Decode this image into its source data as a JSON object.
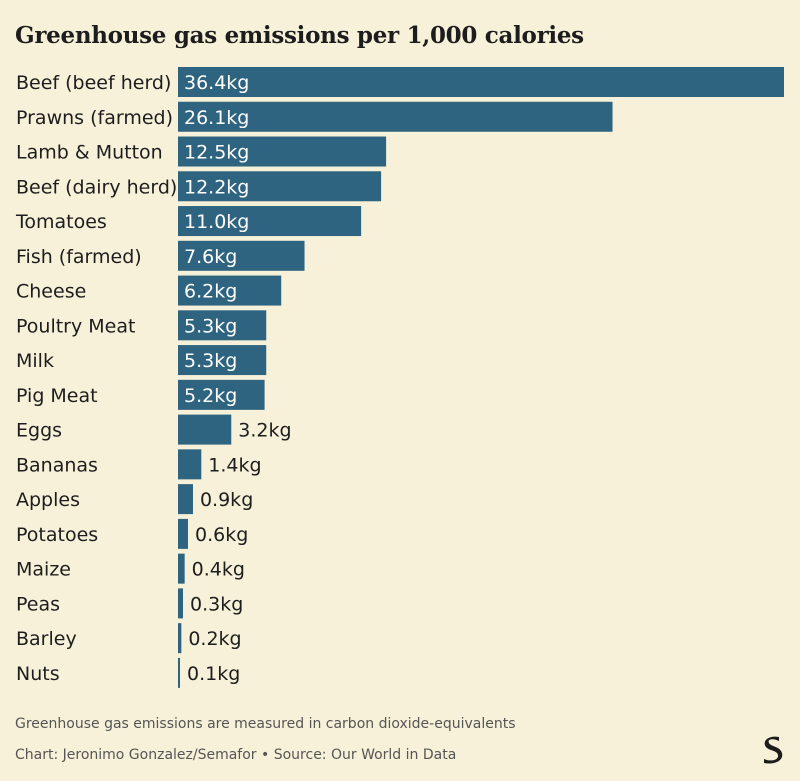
{
  "chart_data": {
    "type": "bar",
    "orientation": "horizontal",
    "title": "Greenhouse gas emissions per 1,000 calories",
    "categories": [
      "Beef (beef herd)",
      "Prawns (farmed)",
      "Lamb & Mutton",
      "Beef (dairy herd)",
      "Tomatoes",
      "Fish (farmed)",
      "Cheese",
      "Poultry Meat",
      "Milk",
      "Pig Meat",
      "Eggs",
      "Bananas",
      "Apples",
      "Potatoes",
      "Maize",
      "Peas",
      "Barley",
      "Nuts"
    ],
    "values": [
      36.4,
      26.1,
      12.5,
      12.2,
      11.0,
      7.6,
      6.2,
      5.3,
      5.3,
      5.2,
      3.2,
      1.4,
      0.9,
      0.6,
      0.4,
      0.3,
      0.2,
      0.1
    ],
    "value_labels": [
      "36.4kg",
      "26.1kg",
      "12.5kg",
      "12.2kg",
      "11.0kg",
      "7.6kg",
      "6.2kg",
      "5.3kg",
      "5.3kg",
      "5.2kg",
      "3.2kg",
      "1.4kg",
      "0.9kg",
      "0.6kg",
      "0.4kg",
      "0.3kg",
      "0.2kg",
      "0.1kg"
    ],
    "unit": "kg",
    "xlim": [
      0,
      36.4
    ],
    "grid": false,
    "legend": "none"
  },
  "footer": {
    "note": "Greenhouse gas emissions are measured in carbon dioxide-equivalents",
    "credit": "Chart: Jeronimo Gonzalez/Semafor • Source: Our World in Data"
  },
  "logo": {
    "text": "S"
  },
  "colors": {
    "bar": "#2f6480",
    "background": "#f7f1d9",
    "label_inside": "#ffffff",
    "label_outside": "#1d1d1d"
  }
}
